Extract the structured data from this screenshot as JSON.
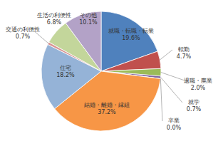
{
  "chart_data": {
    "type": "pie",
    "categories": [
      "就職・転職・転業",
      "転勤",
      "退職・廃業",
      "就学",
      "卒業",
      "結婚・離婚・縁組",
      "住宅",
      "交通の利便性",
      "生活の利便性",
      "その他"
    ],
    "values": [
      19.6,
      4.7,
      2.0,
      0.7,
      0.0,
      37.2,
      18.2,
      0.7,
      6.8,
      10.1
    ],
    "value_labels": [
      "19.6%",
      "4.7%",
      "2.0%",
      "0.7%",
      "0.0%",
      "37.2%",
      "18.2%",
      "0.7%",
      "6.8%",
      "10.1%"
    ],
    "colors": [
      "#4f81bd",
      "#c0504d",
      "#9bbb59",
      "#8064a2",
      "#4bacc6",
      "#f79646",
      "#95b3d7",
      "#d99694",
      "#c3d69b",
      "#b3a2c7"
    ],
    "data_labels": true
  }
}
